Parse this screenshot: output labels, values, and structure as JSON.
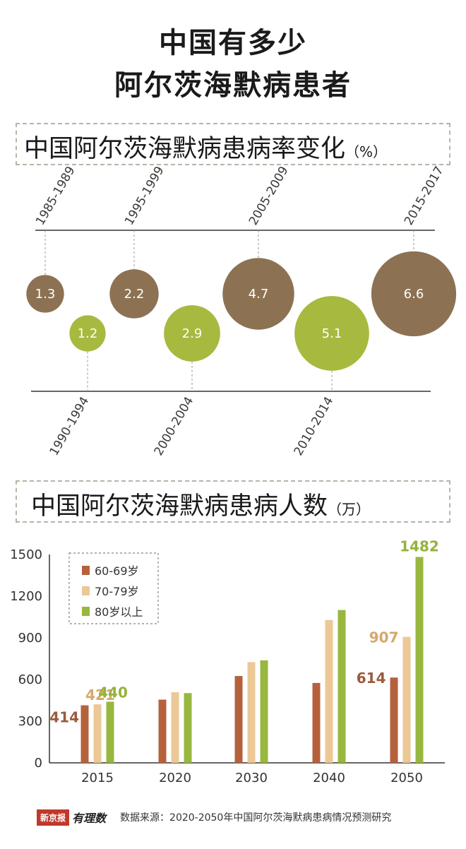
{
  "header": {
    "line1": "中国有多少",
    "line2": "阿尔茨海默病患者"
  },
  "section1": {
    "title": "中国阿尔茨海默病患病率变化",
    "unit": "（%）"
  },
  "section2": {
    "title": "中国阿尔茨海默病患病人数",
    "unit": "（万）"
  },
  "colors": {
    "brown": "#8c7253",
    "green": "#a8b93f",
    "bar_6069": "#b5623c",
    "bar_7079": "#ecc896",
    "bar_80plus": "#98b73e",
    "label_6069": "#9a5b3d",
    "label_7079": "#d6a86a",
    "label_80plus": "#94b23a"
  },
  "footer": {
    "logo": "新京报",
    "logo_script": "有理数",
    "source": "数据来源：2020-2050年中国阿尔茨海默病患病情况预测研究"
  },
  "chart_data": [
    {
      "type": "scatter",
      "periods": [
        "1985-1989",
        "1990-1994",
        "1995-1999",
        "2000-2004",
        "2005-2009",
        "2010-2014",
        "2015-2017"
      ],
      "values": [
        1.3,
        1.2,
        2.2,
        2.9,
        4.7,
        5.1,
        6.6
      ],
      "value_labels": [
        "1.3",
        "1.2",
        "2.2",
        "2.9",
        "4.7",
        "5.1",
        "6.6"
      ],
      "colors": [
        "#8c7253",
        "#a8b93f",
        "#8c7253",
        "#a8b93f",
        "#8c7253",
        "#a8b93f",
        "#8c7253"
      ],
      "unit": "%"
    },
    {
      "type": "bar",
      "categories": [
        "2015",
        "2020",
        "2030",
        "2040",
        "2050"
      ],
      "series": [
        {
          "name": "60-69岁",
          "values": [
            414,
            455,
            625,
            575,
            614
          ]
        },
        {
          "name": "70-79岁",
          "values": [
            421,
            508,
            725,
            1028,
            907
          ]
        },
        {
          "name": "80岁以上",
          "values": [
            440,
            502,
            738,
            1100,
            1482
          ]
        }
      ],
      "data_labels": [
        {
          "series": 0,
          "category": 0,
          "text": "414"
        },
        {
          "series": 1,
          "category": 0,
          "text": "421"
        },
        {
          "series": 2,
          "category": 0,
          "text": "440"
        },
        {
          "series": 0,
          "category": 4,
          "text": "614"
        },
        {
          "series": 1,
          "category": 4,
          "text": "907"
        },
        {
          "series": 2,
          "category": 4,
          "text": "1482"
        }
      ],
      "ylim": [
        0,
        1500
      ],
      "yticks": [
        0,
        300,
        600,
        900,
        1200,
        1500
      ],
      "legend": "top-left",
      "unit": "万"
    }
  ]
}
